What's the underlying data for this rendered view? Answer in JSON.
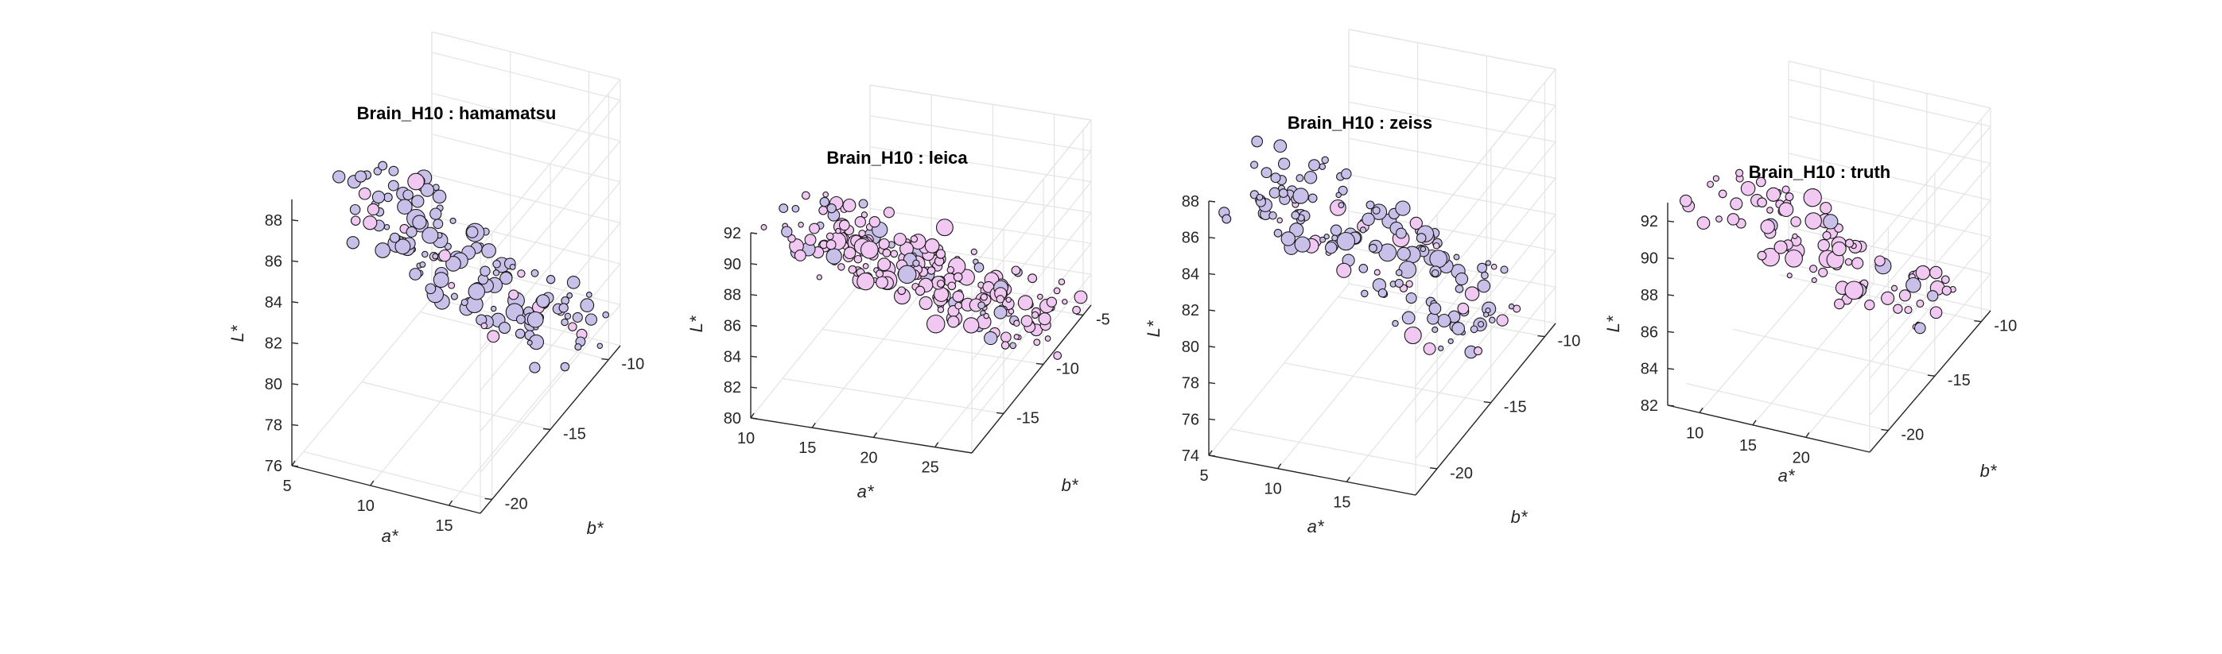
{
  "colors": {
    "marker_edge": "#1a1a1a",
    "marker_purple": "#c9c0ea",
    "marker_pink": "#f0c8f2",
    "grid": "#e3e3e3",
    "axis": "#262626"
  },
  "chart_data": [
    {
      "type": "scatter",
      "title": "Brain_H10 : hamamatsu",
      "xlabel": "a*",
      "ylabel": "b*",
      "zlabel": "L*",
      "xlim": [
        5,
        17
      ],
      "ylim": [
        -21,
        -9
      ],
      "zlim": [
        76,
        89
      ],
      "xticks": [
        "5",
        "10",
        "15"
      ],
      "yticks": [
        "-20",
        "-15",
        "-10"
      ],
      "zticks": [
        "76",
        "78",
        "80",
        "82",
        "84",
        "86",
        "88"
      ],
      "grid": true,
      "marker_color": "purple",
      "points": {
        "a_range": [
          8,
          15
        ],
        "b_range": [
          -20,
          -10
        ],
        "L_range": [
          76.5,
          89.5
        ],
        "L_span": 13,
        "count": 150
      }
    },
    {
      "type": "scatter",
      "title": "Brain_H10 : leica",
      "xlabel": "a*",
      "ylabel": "b*",
      "zlabel": "L*",
      "xlim": [
        10,
        28
      ],
      "ylim": [
        -19,
        -4
      ],
      "zlim": [
        80,
        92
      ],
      "xticks": [
        "10",
        "15",
        "20",
        "25"
      ],
      "yticks": [
        "-15",
        "-10",
        "-5"
      ],
      "zticks": [
        "80",
        "82",
        "84",
        "86",
        "88",
        "90",
        "92"
      ],
      "grid": true,
      "marker_color": "pink",
      "points": {
        "a_range": [
          12,
          26
        ],
        "b_range": [
          -17,
          -6
        ],
        "L_range": [
          80,
          92
        ],
        "L_span": 12,
        "count": 230
      }
    },
    {
      "type": "scatter",
      "title": "Brain_H10 : zeiss",
      "xlabel": "a*",
      "ylabel": "b*",
      "zlabel": "L*",
      "xlim": [
        5,
        20
      ],
      "ylim": [
        -22,
        -9
      ],
      "zlim": [
        74,
        88
      ],
      "xticks": [
        "5",
        "10",
        "15"
      ],
      "yticks": [
        "-20",
        "-15",
        "-10"
      ],
      "zticks": [
        "74",
        "76",
        "78",
        "80",
        "82",
        "84",
        "86",
        "88"
      ],
      "grid": true,
      "marker_color": "purple",
      "points": {
        "a_range": [
          8,
          17
        ],
        "b_range": [
          -21,
          -10
        ],
        "L_range": [
          74,
          89
        ],
        "L_span": 15,
        "count": 160
      }
    },
    {
      "type": "scatter",
      "title": "Brain_H10 : truth",
      "xlabel": "a*",
      "ylabel": "b*",
      "zlabel": "L*",
      "xlim": [
        7,
        26
      ],
      "ylim": [
        -22,
        -9
      ],
      "zlim": [
        82,
        93
      ],
      "xticks": [
        "10",
        "15",
        "20"
      ],
      "yticks": [
        "-20",
        "-15",
        "-10"
      ],
      "zticks": [
        "82",
        "84",
        "86",
        "88",
        "90",
        "92"
      ],
      "grid": true,
      "marker_color": "pink",
      "points": {
        "a_range": [
          10,
          22
        ],
        "b_range": [
          -20,
          -10
        ],
        "L_range": [
          82,
          93
        ],
        "L_span": 11,
        "count": 95
      }
    }
  ]
}
